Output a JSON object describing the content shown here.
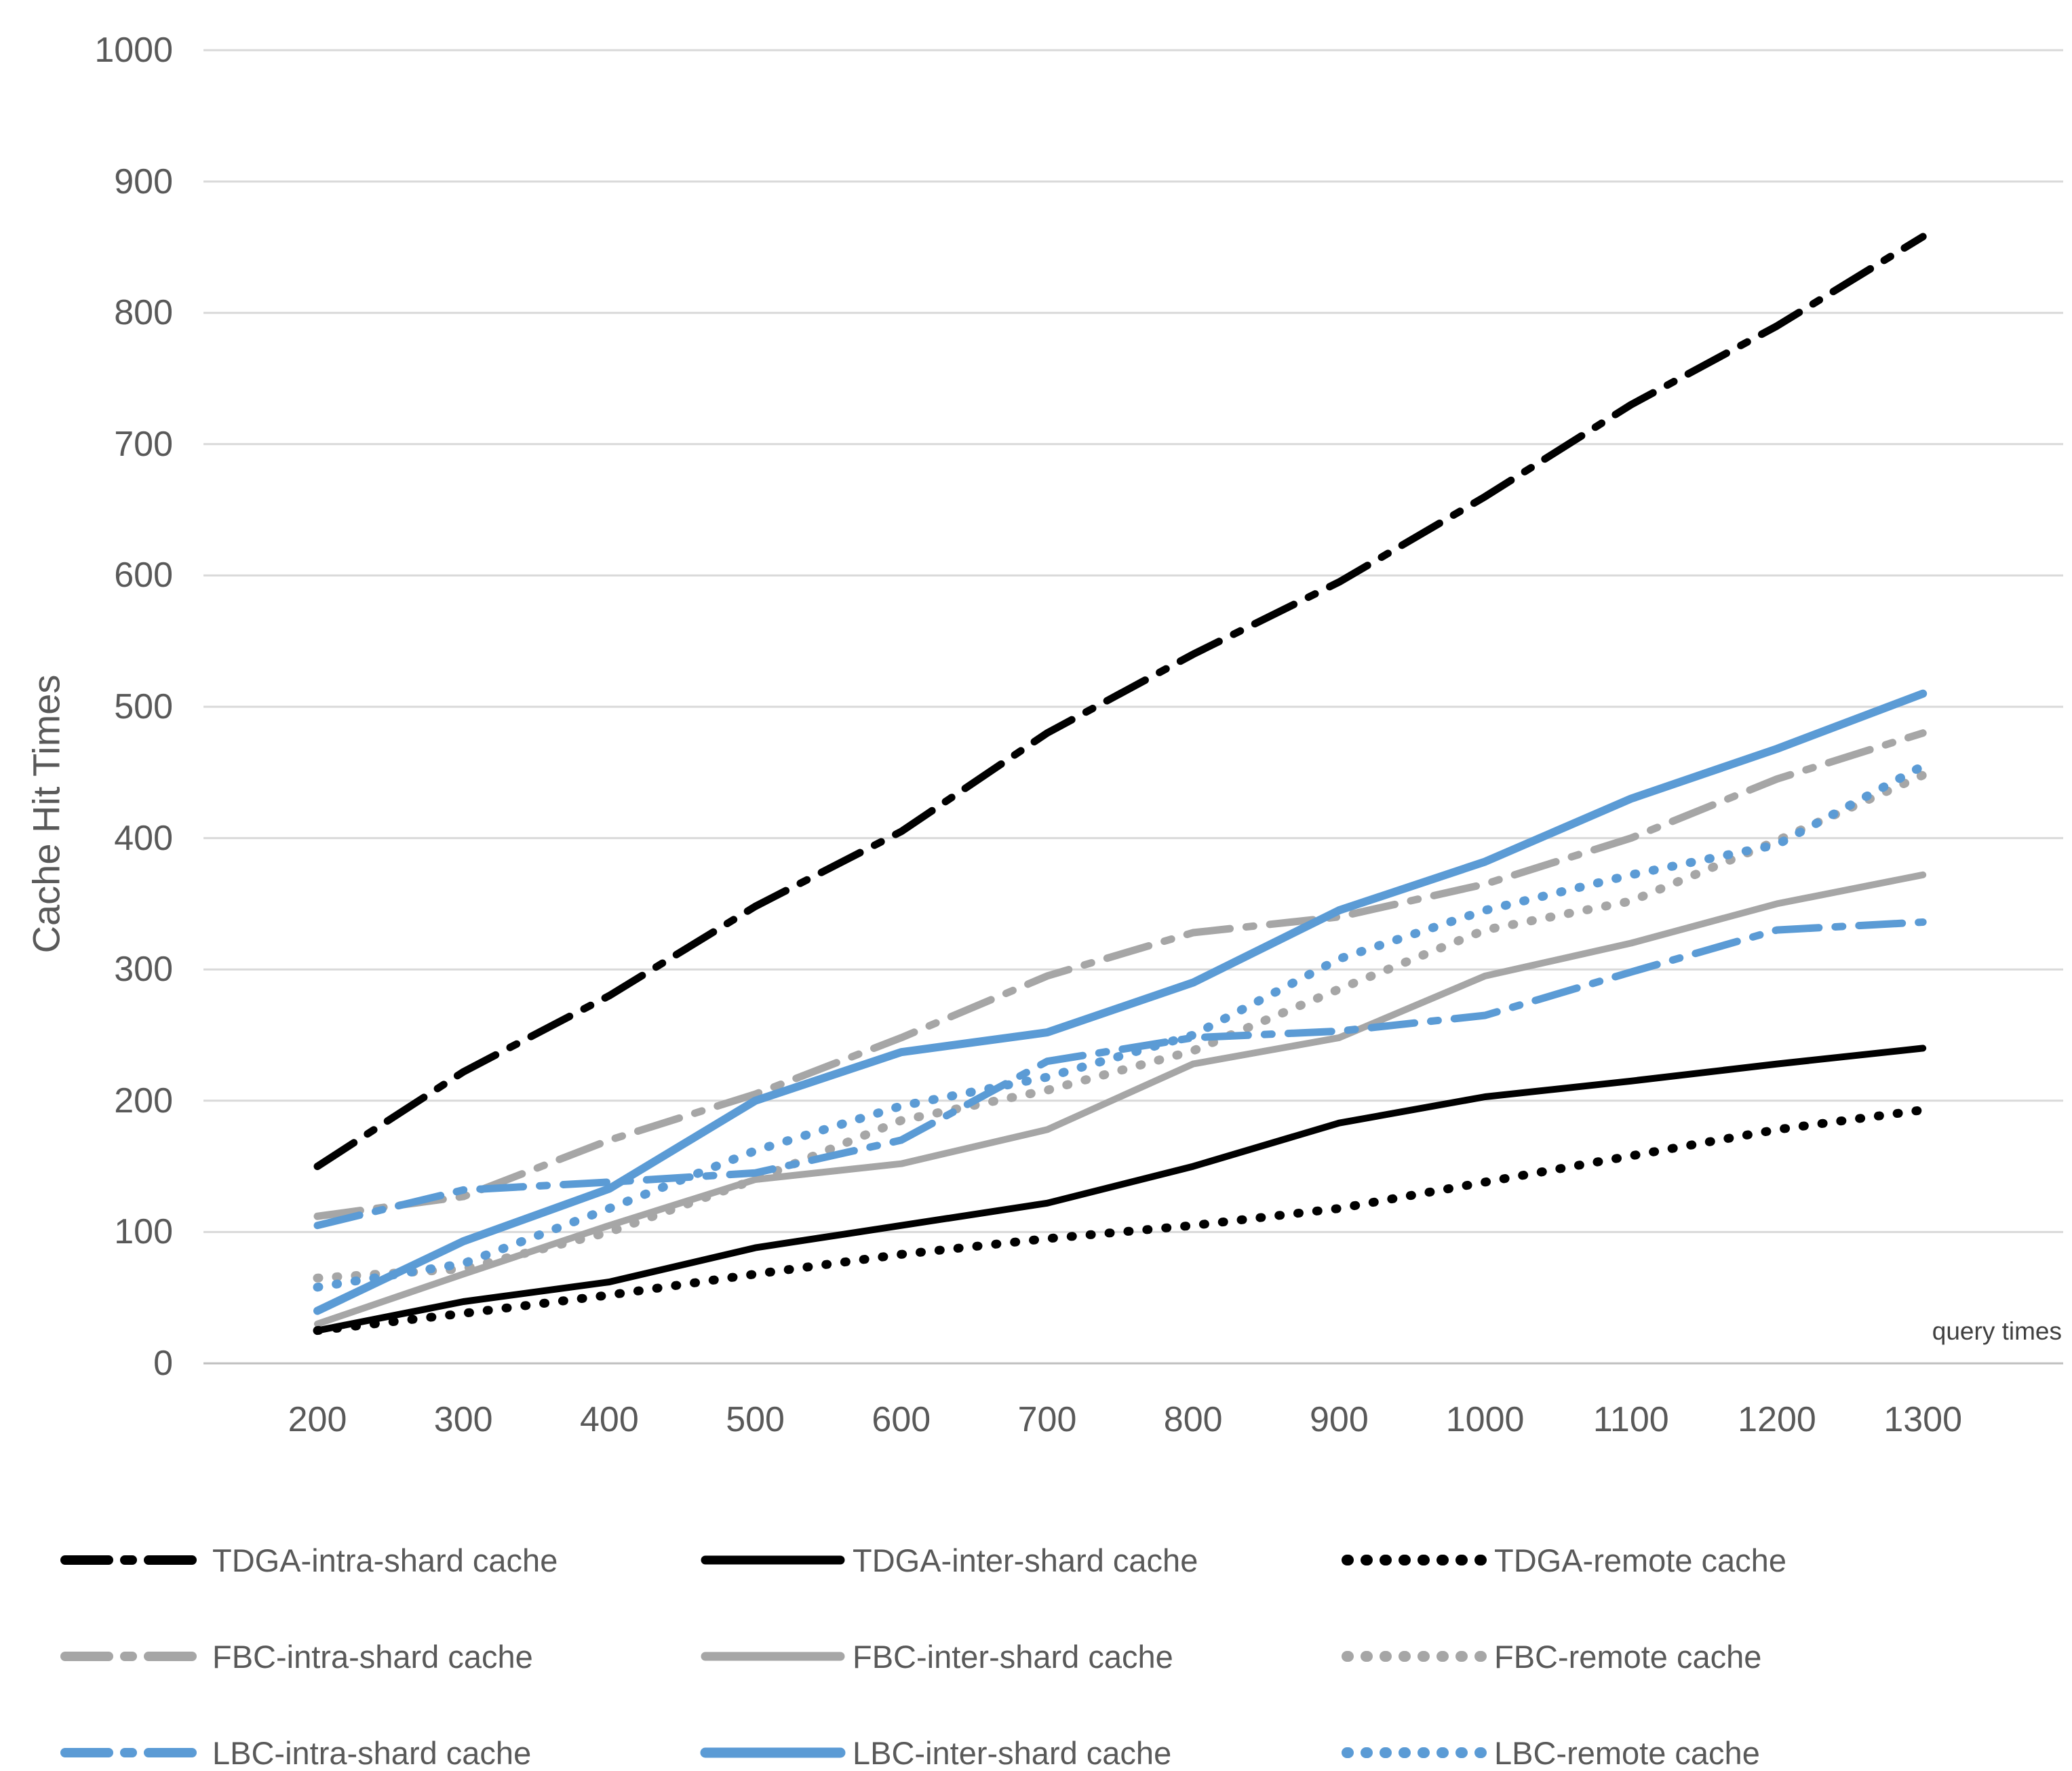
{
  "chart_data": {
    "type": "line",
    "title": "",
    "ylabel": "Cache Hit Times",
    "xlabel": "query times",
    "x": [
      200,
      300,
      400,
      500,
      600,
      700,
      800,
      900,
      1000,
      1100,
      1200,
      1300
    ],
    "ylim": [
      0,
      1000
    ],
    "ytick_step": 100,
    "grid": true,
    "legend_position": "bottom",
    "colors": {
      "tdga": "#000000",
      "fbc": "#a6a6a6",
      "lbc": "#5b9bd5",
      "gridline": "#d9d9d9",
      "axis": "#bfbfbf",
      "tick_text": "#595959"
    },
    "series": [
      {
        "name": "TDGA-intra-shard cache",
        "color": "#000000",
        "style": "dashdot",
        "values": [
          150,
          222,
          280,
          348,
          405,
          480,
          540,
          595,
          660,
          730,
          790,
          858
        ]
      },
      {
        "name": "TDGA-inter-shard cache",
        "color": "#000000",
        "style": "solid",
        "values": [
          25,
          47,
          62,
          88,
          105,
          122,
          150,
          183,
          203,
          215,
          228,
          240
        ]
      },
      {
        "name": "TDGA-remote cache",
        "color": "#000000",
        "style": "dotted",
        "values": [
          25,
          38,
          52,
          68,
          83,
          95,
          105,
          118,
          138,
          158,
          178,
          193
        ]
      },
      {
        "name": "FBC-intra-shard cache",
        "color": "#a6a6a6",
        "style": "dashdot",
        "values": [
          112,
          127,
          170,
          205,
          248,
          295,
          328,
          340,
          365,
          400,
          445,
          480
        ]
      },
      {
        "name": "FBC-inter-shard cache",
        "color": "#a6a6a6",
        "style": "solid",
        "values": [
          30,
          68,
          105,
          140,
          152,
          178,
          228,
          248,
          295,
          320,
          350,
          372
        ]
      },
      {
        "name": "FBC-remote cache",
        "color": "#a6a6a6",
        "style": "dotted",
        "values": [
          65,
          72,
          100,
          140,
          185,
          208,
          238,
          285,
          330,
          352,
          398,
          448
        ]
      },
      {
        "name": "LBC-intra-shard cache",
        "color": "#5b9bd5",
        "style": "dashdot",
        "values": [
          105,
          132,
          138,
          145,
          170,
          230,
          248,
          253,
          265,
          298,
          330,
          336
        ]
      },
      {
        "name": "LBC-inter-shard cache",
        "color": "#5b9bd5",
        "style": "solid",
        "values": [
          40,
          93,
          133,
          200,
          237,
          252,
          290,
          345,
          382,
          430,
          468,
          510
        ]
      },
      {
        "name": "LBC-remote cache",
        "color": "#5b9bd5",
        "style": "dotted",
        "values": [
          58,
          76,
          118,
          162,
          196,
          218,
          250,
          308,
          345,
          372,
          395,
          455
        ]
      }
    ]
  }
}
